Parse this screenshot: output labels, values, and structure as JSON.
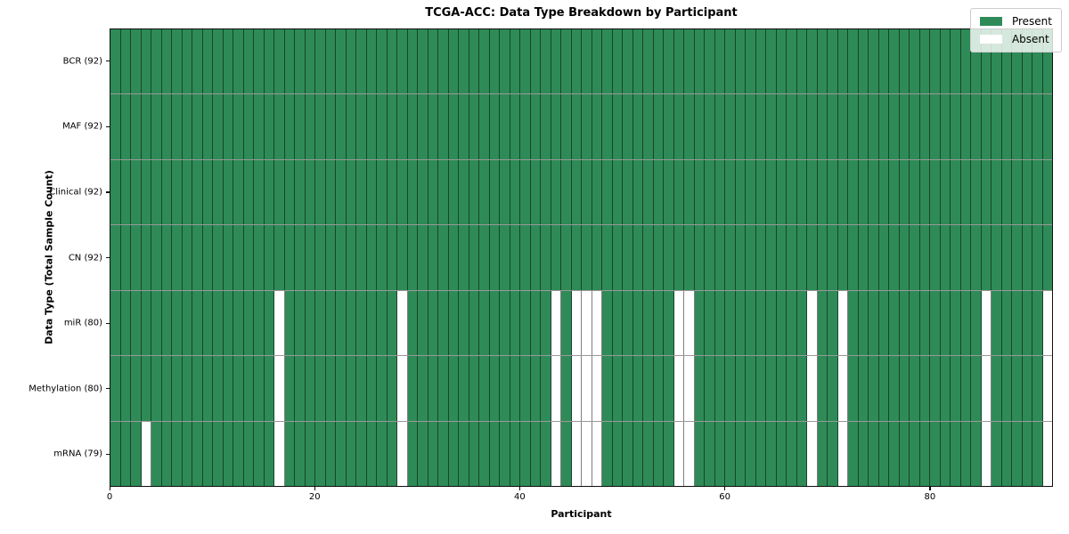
{
  "chart_data": {
    "type": "heatmap",
    "title": "TCGA-ACC: Data Type Breakdown by Participant",
    "xlabel": "Participant",
    "ylabel": "Data Type (Total Sample Count)",
    "n_participants": 92,
    "x_range": [
      0,
      92
    ],
    "x_ticks": [
      0,
      20,
      40,
      60,
      80
    ],
    "grid": true,
    "legend_position": "upper right",
    "legend": [
      {
        "label": "Present",
        "state": "present"
      },
      {
        "label": "Absent",
        "state": "absent"
      }
    ],
    "rows": [
      {
        "label": "BCR (92)",
        "data_type": "BCR",
        "total_samples": 92,
        "absent_participants": []
      },
      {
        "label": "MAF (92)",
        "data_type": "MAF",
        "total_samples": 92,
        "absent_participants": []
      },
      {
        "label": "Clinical (92)",
        "data_type": "Clinical",
        "total_samples": 92,
        "absent_participants": []
      },
      {
        "label": "CN (92)",
        "data_type": "CN",
        "total_samples": 92,
        "absent_participants": []
      },
      {
        "label": "miR (80)",
        "data_type": "miR",
        "total_samples": 80,
        "absent_participants": [
          16,
          28,
          43,
          45,
          46,
          47,
          55,
          56,
          68,
          71,
          85,
          91
        ]
      },
      {
        "label": "Methylation (80)",
        "data_type": "Methylation",
        "total_samples": 80,
        "absent_participants": [
          16,
          28,
          43,
          45,
          46,
          47,
          55,
          56,
          68,
          71,
          85,
          91
        ]
      },
      {
        "label": "mRNA (79)",
        "data_type": "mRNA",
        "total_samples": 79,
        "absent_participants": [
          3,
          16,
          28,
          43,
          45,
          46,
          47,
          55,
          56,
          68,
          71,
          85,
          91
        ]
      }
    ]
  },
  "colors": {
    "present": "#2e8b57",
    "absent": "#ffffff",
    "cell_edge": "rgba(0,0,0,0.5)",
    "row_separator": "rgba(70,70,70,0.55)",
    "spine": "#0f0f0f",
    "legend_background": "rgba(255,255,255,0.8)",
    "legend_border": "#cccccc"
  }
}
